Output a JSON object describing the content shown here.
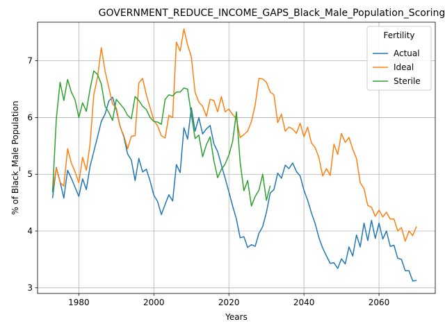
{
  "chart_data": {
    "type": "line",
    "title": "GOVERNMENT_REDUCE_INCOME_GAPS_Black_Male_Population_Scoring: 1",
    "xlabel": "Years",
    "ylabel": "% of Black_Male Population",
    "xlim": [
      1969,
      2075
    ],
    "ylim": [
      2.9,
      7.68
    ],
    "xticks": [
      1980,
      2000,
      2020,
      2040,
      2060
    ],
    "yticks": [
      3,
      4,
      5,
      6,
      7
    ],
    "grid": true,
    "legend": {
      "title": "Fertility",
      "placement": "top-right"
    },
    "series": [
      {
        "name": "Actual",
        "color": "#1f77b4",
        "x": [
          1973,
          1974,
          1975,
          1976,
          1977,
          1978,
          1979,
          1980,
          1981,
          1982,
          1983,
          1984,
          1985,
          1986,
          1987,
          1988,
          1989,
          1990,
          1991,
          1992,
          1993,
          1994,
          1995,
          1996,
          1997,
          1998,
          1999,
          2000,
          2001,
          2002,
          2003,
          2004,
          2005,
          2006,
          2007,
          2008,
          2009,
          2010,
          2011,
          2012,
          2013,
          2014,
          2015,
          2016,
          2017,
          2018,
          2019,
          2020,
          2021,
          2022,
          2023,
          2024,
          2025,
          2026,
          2027,
          2028,
          2029,
          2030,
          2031,
          2032,
          2033,
          2034,
          2035,
          2036,
          2037,
          2038,
          2039,
          2040,
          2041,
          2042,
          2043,
          2044,
          2045,
          2046,
          2047,
          2048,
          2049,
          2050,
          2051,
          2052,
          2053,
          2054,
          2055,
          2056,
          2057,
          2058,
          2059,
          2060,
          2061,
          2062,
          2063,
          2064,
          2065,
          2066,
          2067,
          2068,
          2069,
          2070
        ],
        "values": [
          4.58,
          5.12,
          4.87,
          4.58,
          5.07,
          4.93,
          4.77,
          4.61,
          4.92,
          4.73,
          5.14,
          5.4,
          5.66,
          5.93,
          6.06,
          6.29,
          6.36,
          6.13,
          5.85,
          5.66,
          5.36,
          5.25,
          4.89,
          5.28,
          5.04,
          5.09,
          4.88,
          4.63,
          4.52,
          4.29,
          4.47,
          4.64,
          4.53,
          5.17,
          5.03,
          5.82,
          5.62,
          6.17,
          5.76,
          6.0,
          5.71,
          5.8,
          5.86,
          5.54,
          5.4,
          5.16,
          4.93,
          4.69,
          4.44,
          4.21,
          3.88,
          3.9,
          3.71,
          3.76,
          3.73,
          3.96,
          4.08,
          4.33,
          4.67,
          4.73,
          5.02,
          4.93,
          5.16,
          5.1,
          5.2,
          5.05,
          4.97,
          4.72,
          4.54,
          4.32,
          4.13,
          3.88,
          3.7,
          3.56,
          3.43,
          3.44,
          3.34,
          3.51,
          3.42,
          3.72,
          3.56,
          3.93,
          3.72,
          4.14,
          3.83,
          4.19,
          3.87,
          4.14,
          3.86,
          4.0,
          3.73,
          3.75,
          3.52,
          3.5,
          3.3,
          3.3,
          3.12,
          3.13
        ]
      },
      {
        "name": "Ideal",
        "color": "#ff7f0e",
        "x": [
          1973,
          1974,
          1975,
          1976,
          1977,
          1978,
          1979,
          1980,
          1981,
          1982,
          1983,
          1984,
          1985,
          1986,
          1987,
          1988,
          1989,
          1990,
          1991,
          1992,
          1993,
          1994,
          1995,
          1996,
          1997,
          1998,
          1999,
          2000,
          2001,
          2002,
          2003,
          2004,
          2005,
          2006,
          2007,
          2008,
          2009,
          2010,
          2011,
          2012,
          2013,
          2014,
          2015,
          2016,
          2017,
          2018,
          2019,
          2020,
          2021,
          2022,
          2023,
          2024,
          2025,
          2026,
          2027,
          2028,
          2029,
          2030,
          2031,
          2032,
          2033,
          2034,
          2035,
          2036,
          2037,
          2038,
          2039,
          2040,
          2041,
          2042,
          2043,
          2044,
          2045,
          2046,
          2047,
          2048,
          2049,
          2050,
          2051,
          2052,
          2053,
          2054,
          2055,
          2056,
          2057,
          2058,
          2059,
          2060,
          2061,
          2062,
          2063,
          2064,
          2065,
          2066,
          2067,
          2068,
          2069,
          2070
        ],
        "values": [
          4.71,
          5.11,
          4.86,
          4.79,
          5.45,
          5.2,
          5.04,
          4.85,
          5.3,
          5.07,
          5.53,
          6.4,
          6.71,
          7.23,
          6.82,
          6.53,
          6.24,
          6.17,
          5.84,
          5.68,
          5.45,
          5.67,
          5.68,
          6.61,
          6.69,
          6.4,
          6.17,
          5.95,
          5.85,
          5.68,
          5.64,
          6.04,
          6.0,
          7.33,
          7.17,
          7.56,
          7.28,
          7.07,
          6.44,
          6.27,
          6.2,
          6.02,
          6.32,
          6.3,
          6.1,
          6.37,
          6.1,
          6.15,
          6.05,
          5.98,
          5.65,
          5.7,
          5.76,
          5.93,
          6.22,
          6.69,
          6.68,
          6.62,
          6.45,
          6.4,
          5.91,
          6.06,
          5.76,
          5.83,
          5.8,
          5.72,
          5.9,
          5.66,
          5.83,
          5.55,
          5.47,
          5.29,
          4.97,
          5.1,
          4.98,
          5.53,
          5.35,
          5.72,
          5.56,
          5.65,
          5.44,
          5.28,
          4.85,
          4.75,
          4.45,
          4.42,
          4.26,
          4.37,
          4.25,
          4.33,
          4.21,
          4.21,
          4.0,
          4.06,
          3.82,
          4.0,
          3.92,
          4.08
        ]
      },
      {
        "name": "Sterile",
        "color": "#2ca02c",
        "x": [
          1973,
          1974,
          1975,
          1976,
          1977,
          1978,
          1979,
          1980,
          1981,
          1982,
          1983,
          1984,
          1985,
          1986,
          1987,
          1988,
          1989,
          1990,
          1991,
          1992,
          1993,
          1994,
          1995,
          1996,
          1997,
          1998,
          1999,
          2000,
          2001,
          2002,
          2003,
          2004,
          2005,
          2006,
          2007,
          2008,
          2009,
          2010,
          2011,
          2012,
          2013,
          2014,
          2015,
          2016,
          2017,
          2018,
          2019,
          2020,
          2021,
          2022,
          2023,
          2024,
          2025,
          2026,
          2027,
          2028,
          2029,
          2030,
          2031
        ],
        "values": [
          4.68,
          5.98,
          6.62,
          6.3,
          6.67,
          6.45,
          6.31,
          6.0,
          6.26,
          6.11,
          6.5,
          6.82,
          6.76,
          6.59,
          6.2,
          6.09,
          5.95,
          6.32,
          6.24,
          6.16,
          6.04,
          5.98,
          6.37,
          6.3,
          6.2,
          6.14,
          6.0,
          5.93,
          5.92,
          5.88,
          6.32,
          6.4,
          6.38,
          6.45,
          6.45,
          6.52,
          6.5,
          6.05,
          5.63,
          5.69,
          5.31,
          5.52,
          5.66,
          5.24,
          4.94,
          5.09,
          5.18,
          5.34,
          5.58,
          6.1,
          5.21,
          4.71,
          4.89,
          4.44,
          4.61,
          4.72,
          5.0,
          4.54,
          4.8
        ]
      }
    ]
  }
}
